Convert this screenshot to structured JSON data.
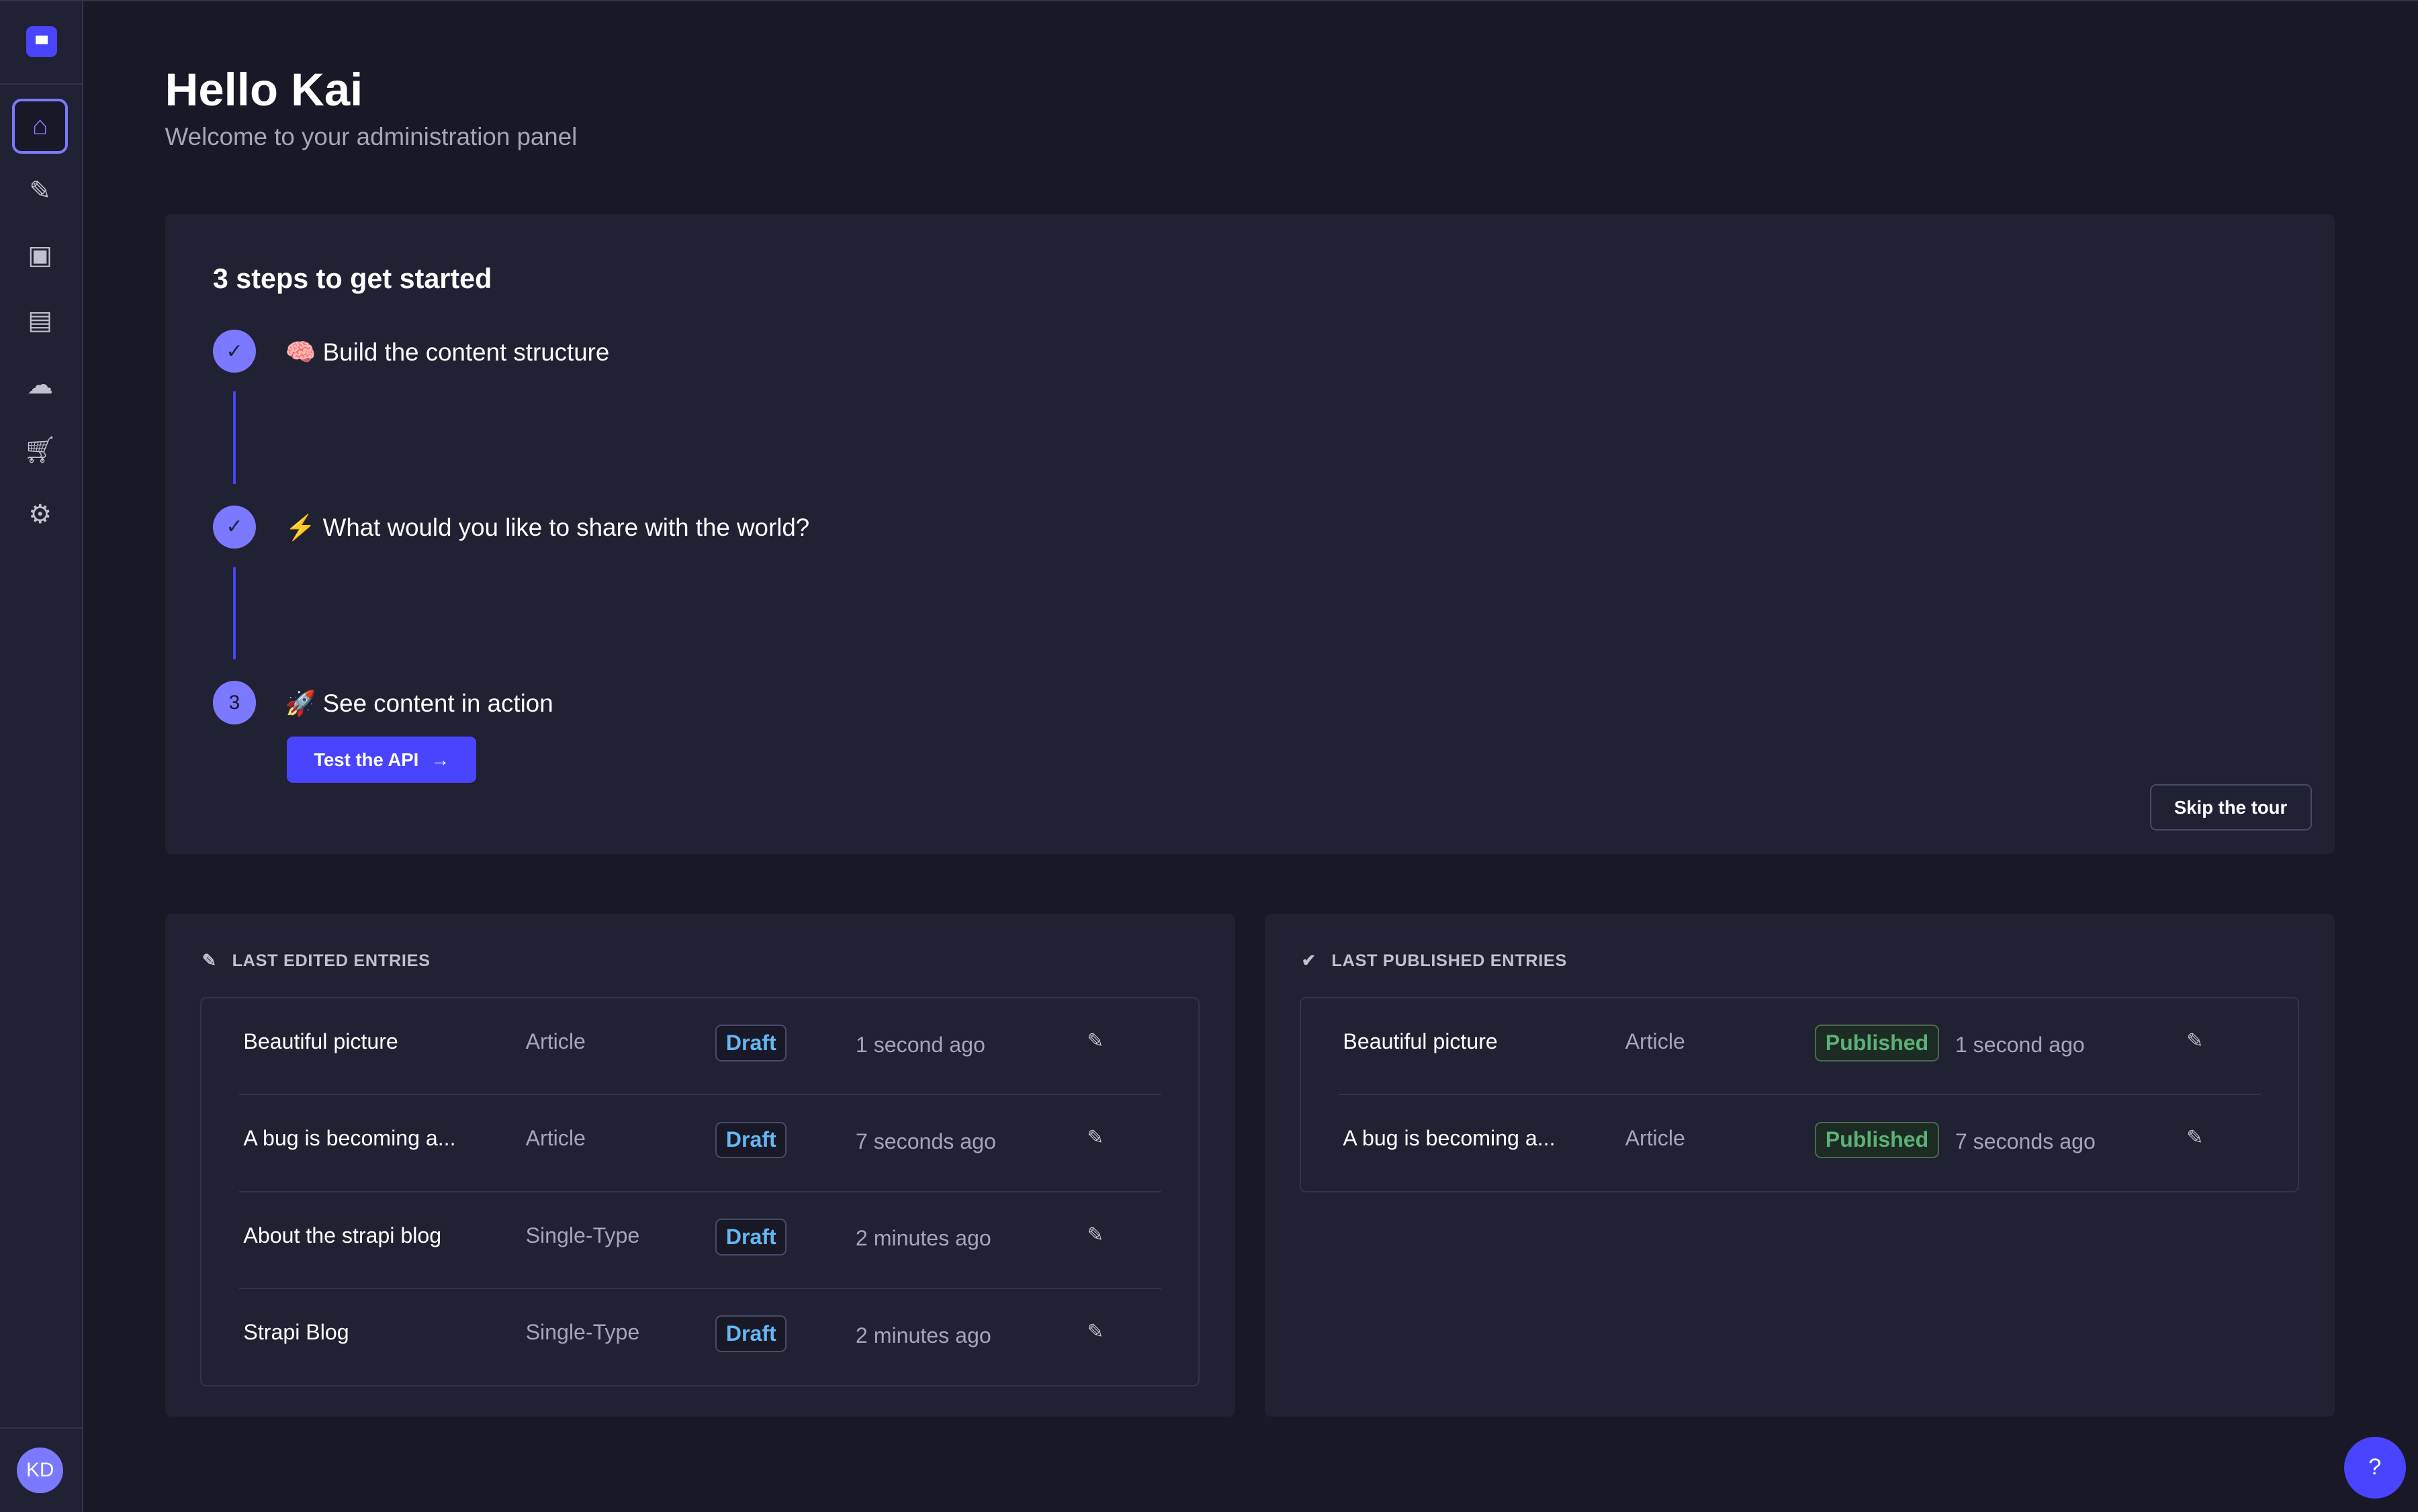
{
  "sidebar": {
    "items": [
      {
        "icon": "home-icon",
        "active": true
      },
      {
        "icon": "feather-icon"
      },
      {
        "icon": "media-library-icon"
      },
      {
        "icon": "layout-icon"
      },
      {
        "icon": "cloud-icon"
      },
      {
        "icon": "cart-icon"
      },
      {
        "icon": "gear-icon"
      }
    ],
    "avatar": "KD"
  },
  "header": {
    "title": "Hello Kai",
    "subtitle": "Welcome to your administration panel"
  },
  "steps": {
    "title": "3 steps to get started",
    "items": [
      {
        "emoji": "🧠",
        "label": "Build the content structure",
        "done": true
      },
      {
        "emoji": "⚡",
        "label": "What would you like to share with the world?",
        "done": true
      },
      {
        "emoji": "🚀",
        "label": "See content in action",
        "number": "3"
      }
    ],
    "cta": "Test the API",
    "skip": "Skip the tour"
  },
  "last_edited": {
    "title": "LAST EDITED ENTRIES",
    "rows": [
      {
        "title": "Beautiful picture",
        "type": "Article",
        "status": "Draft",
        "time": "1 second ago"
      },
      {
        "title": "A bug is becoming a...",
        "type": "Article",
        "status": "Draft",
        "time": "7 seconds ago"
      },
      {
        "title": "About the strapi blog",
        "type": "Single-Type",
        "status": "Draft",
        "time": "2 minutes ago"
      },
      {
        "title": "Strapi Blog",
        "type": "Single-Type",
        "status": "Draft",
        "time": "2 minutes ago"
      }
    ]
  },
  "last_published": {
    "title": "LAST PUBLISHED ENTRIES",
    "rows": [
      {
        "title": "Beautiful picture",
        "type": "Article",
        "status": "Published",
        "time": "1 second ago"
      },
      {
        "title": "A bug is becoming a...",
        "type": "Article",
        "status": "Published",
        "time": "7 seconds ago"
      }
    ]
  },
  "colors": {
    "primary": "#4945ff",
    "draft": "#66b7f1",
    "published": "#5cb176"
  }
}
